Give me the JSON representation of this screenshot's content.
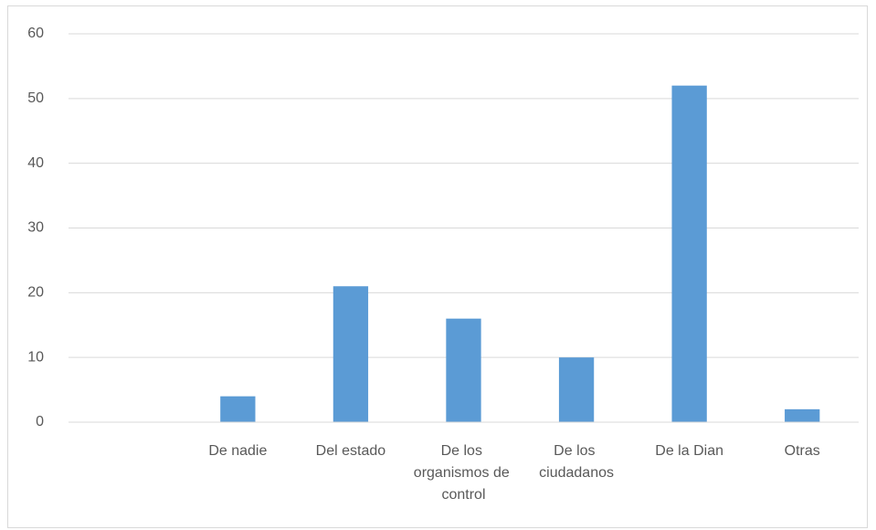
{
  "chart_data": {
    "type": "bar",
    "categories": [
      null,
      "De nadie",
      "Del estado",
      "De los organismos de control",
      "De los ciudadanos",
      "De la Dian",
      "Otras"
    ],
    "values": [
      null,
      4,
      21,
      16,
      10,
      52,
      2
    ],
    "color": "#5b9bd5",
    "ylim": [
      0,
      60
    ],
    "yticks": [
      0,
      10,
      20,
      30,
      40,
      50,
      60
    ],
    "grid": true
  }
}
